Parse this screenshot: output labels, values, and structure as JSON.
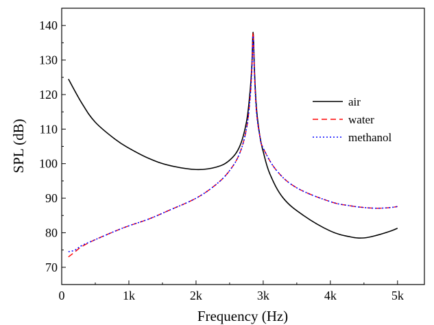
{
  "chart_data": {
    "type": "line",
    "title": "",
    "xlabel": "Frequency (Hz)",
    "ylabel": "SPL (dB)",
    "xlim": [
      0,
      5400
    ],
    "ylim": [
      65,
      145
    ],
    "xticks": [
      {
        "value": 0,
        "label": "0"
      },
      {
        "value": 1000,
        "label": "1k"
      },
      {
        "value": 2000,
        "label": "2k"
      },
      {
        "value": 3000,
        "label": "3k"
      },
      {
        "value": 4000,
        "label": "4k"
      },
      {
        "value": 5000,
        "label": "5k"
      }
    ],
    "yticks": [
      {
        "value": 70,
        "label": "70"
      },
      {
        "value": 80,
        "label": "80"
      },
      {
        "value": 90,
        "label": "90"
      },
      {
        "value": 100,
        "label": "100"
      },
      {
        "value": 110,
        "label": "110"
      },
      {
        "value": 120,
        "label": "120"
      },
      {
        "value": 130,
        "label": "130"
      },
      {
        "value": 140,
        "label": "140"
      }
    ],
    "grid": false,
    "legend_position": "right",
    "series": [
      {
        "name": "air",
        "color": "#000000",
        "dash": "solid",
        "x": [
          100,
          300,
          500,
          800,
          1000,
          1300,
          1600,
          2000,
          2300,
          2500,
          2650,
          2750,
          2800,
          2830,
          2850,
          2870,
          2900,
          2950,
          3000,
          3100,
          3300,
          3600,
          4000,
          4300,
          4500,
          4700,
          4900,
          5000
        ],
        "y": [
          124.5,
          117.5,
          112,
          107,
          104.5,
          101.5,
          99.5,
          98.3,
          99,
          101,
          105,
          112,
          120,
          128,
          138,
          127,
          116,
          108,
          103.5,
          97,
          90,
          85,
          80.5,
          78.8,
          78.5,
          79.3,
          80.5,
          81.3
        ]
      },
      {
        "name": "water",
        "color": "#ff0000",
        "dash": "dashed",
        "x": [
          100,
          200,
          300,
          500,
          800,
          1000,
          1300,
          1600,
          2000,
          2300,
          2500,
          2650,
          2750,
          2800,
          2830,
          2850,
          2870,
          2900,
          2950,
          3000,
          3200,
          3500,
          4000,
          4300,
          4500,
          4700,
          4900,
          5000
        ],
        "y": [
          73,
          74.5,
          76,
          78,
          80.5,
          82,
          84,
          86.5,
          90,
          94,
          98,
          103,
          110,
          118,
          127,
          138,
          126,
          115,
          108,
          104.5,
          98,
          93,
          89,
          87.8,
          87.3,
          87.1,
          87.3,
          87.6
        ]
      },
      {
        "name": "methanol",
        "color": "#0000ff",
        "dash": "dotted",
        "x": [
          100,
          200,
          300,
          500,
          800,
          1000,
          1300,
          1600,
          2000,
          2300,
          2500,
          2650,
          2750,
          2800,
          2830,
          2850,
          2870,
          2900,
          2950,
          3000,
          3200,
          3500,
          4000,
          4300,
          4500,
          4700,
          4900,
          5000
        ],
        "y": [
          74.5,
          75,
          76.3,
          78,
          80.5,
          82,
          84,
          86.5,
          90,
          94,
          98,
          103,
          110,
          118,
          127,
          137,
          126,
          115,
          108,
          104.5,
          98,
          93,
          89,
          87.8,
          87.3,
          87.1,
          87.3,
          87.6
        ]
      }
    ]
  }
}
